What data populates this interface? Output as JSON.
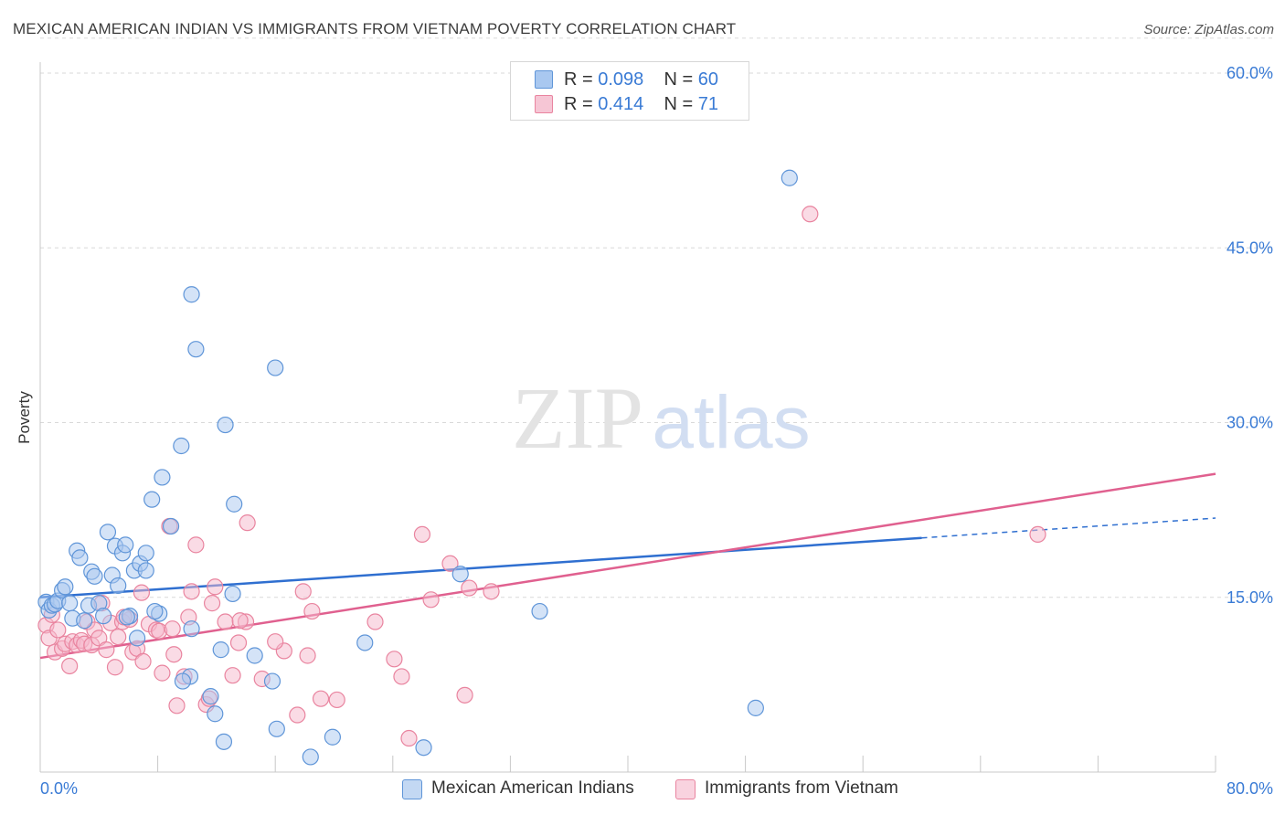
{
  "header": {
    "title": "MEXICAN AMERICAN INDIAN VS IMMIGRANTS FROM VIETNAM POVERTY CORRELATION CHART",
    "source": "Source: ZipAtlas.com"
  },
  "legend": {
    "rows": [
      {
        "r_label": "R =",
        "r_value": "0.098",
        "n_label": "N =",
        "n_value": "60"
      },
      {
        "r_label": "R =",
        "r_value": "0.414",
        "n_label": "N =",
        "n_value": "71"
      }
    ]
  },
  "watermark": {
    "zip": "ZIP",
    "atlas": "atlas"
  },
  "colors": {
    "blue_fill": "#a9c8f0",
    "blue_stroke": "#5f95d8",
    "blue_line": "#2f6fd0",
    "pink_fill": "#f6b8cc",
    "pink_stroke": "#e9849f",
    "pink_line": "#e0608f",
    "axis_label": "#3a7bd5",
    "grid": "#d9d9d9"
  },
  "chart_data": {
    "type": "scatter",
    "title": "MEXICAN AMERICAN INDIAN VS IMMIGRANTS FROM VIETNAM POVERTY CORRELATION CHART",
    "xlabel": "",
    "ylabel": "Poverty",
    "xlim": [
      0,
      80
    ],
    "ylim": [
      0,
      63
    ],
    "x_tick_labels": [
      "0.0%",
      "80.0%"
    ],
    "y_ticks": [
      15,
      30,
      45,
      60
    ],
    "y_tick_labels": [
      "15.0%",
      "30.0%",
      "45.0%",
      "60.0%"
    ],
    "grid": true,
    "legend_position": "top-center",
    "series": [
      {
        "name": "Mexican American Indians",
        "color": "#5f95d8",
        "r": 0.098,
        "n": 60,
        "trend": {
          "x0": 0,
          "y0": 15.0,
          "x1": 60,
          "y1": 20.1,
          "dashed_to_x": 80,
          "dashed_to_y": 21.8
        },
        "points": [
          [
            0.4,
            14.6
          ],
          [
            0.6,
            13.9
          ],
          [
            0.8,
            14.3
          ],
          [
            1.0,
            14.4
          ],
          [
            1.2,
            14.7
          ],
          [
            1.5,
            15.6
          ],
          [
            1.7,
            15.9
          ],
          [
            2.0,
            14.5
          ],
          [
            2.2,
            13.2
          ],
          [
            2.5,
            19.0
          ],
          [
            2.7,
            18.4
          ],
          [
            3.0,
            13.0
          ],
          [
            3.3,
            14.3
          ],
          [
            3.5,
            17.2
          ],
          [
            3.7,
            16.8
          ],
          [
            4.0,
            14.5
          ],
          [
            4.3,
            13.4
          ],
          [
            4.6,
            20.6
          ],
          [
            4.9,
            16.9
          ],
          [
            5.1,
            19.4
          ],
          [
            5.3,
            16.0
          ],
          [
            5.6,
            18.8
          ],
          [
            5.8,
            19.5
          ],
          [
            6.1,
            13.4
          ],
          [
            6.4,
            17.3
          ],
          [
            6.6,
            11.5
          ],
          [
            6.8,
            17.9
          ],
          [
            7.2,
            17.3
          ],
          [
            7.2,
            18.8
          ],
          [
            7.6,
            23.4
          ],
          [
            8.1,
            13.6
          ],
          [
            8.3,
            25.3
          ],
          [
            8.9,
            21.1
          ],
          [
            9.6,
            28.0
          ],
          [
            10.3,
            12.3
          ],
          [
            10.3,
            41.0
          ],
          [
            10.6,
            36.3
          ],
          [
            11.6,
            6.5
          ],
          [
            11.9,
            5.0
          ],
          [
            12.3,
            10.5
          ],
          [
            12.5,
            2.6
          ],
          [
            13.1,
            15.3
          ],
          [
            13.2,
            23.0
          ],
          [
            14.6,
            10.0
          ],
          [
            15.8,
            7.8
          ],
          [
            16.1,
            3.7
          ],
          [
            18.4,
            1.3
          ],
          [
            19.9,
            3.0
          ],
          [
            22.1,
            11.1
          ],
          [
            26.1,
            2.1
          ],
          [
            28.6,
            17.0
          ],
          [
            34.0,
            13.8
          ],
          [
            48.7,
            5.5
          ],
          [
            51.0,
            51.0
          ],
          [
            12.6,
            29.8
          ],
          [
            16.0,
            34.7
          ],
          [
            5.9,
            13.3
          ],
          [
            7.8,
            13.8
          ],
          [
            10.2,
            8.2
          ],
          [
            9.7,
            7.8
          ]
        ]
      },
      {
        "name": "Immigrants from Vietnam",
        "color": "#e9849f",
        "r": 0.414,
        "n": 71,
        "trend": {
          "x0": 0,
          "y0": 9.8,
          "x1": 80,
          "y1": 25.6
        },
        "points": [
          [
            0.4,
            12.6
          ],
          [
            0.6,
            11.5
          ],
          [
            0.8,
            13.5
          ],
          [
            1.0,
            10.3
          ],
          [
            1.2,
            12.2
          ],
          [
            1.5,
            10.6
          ],
          [
            1.7,
            11.0
          ],
          [
            2.0,
            9.1
          ],
          [
            2.2,
            11.2
          ],
          [
            2.5,
            10.9
          ],
          [
            2.8,
            11.3
          ],
          [
            3.0,
            11.0
          ],
          [
            3.2,
            12.9
          ],
          [
            3.5,
            10.9
          ],
          [
            3.7,
            12.2
          ],
          [
            4.0,
            11.5
          ],
          [
            4.2,
            14.5
          ],
          [
            4.5,
            10.5
          ],
          [
            4.8,
            12.8
          ],
          [
            5.1,
            9.0
          ],
          [
            5.3,
            11.6
          ],
          [
            5.6,
            12.9
          ],
          [
            6.1,
            13.1
          ],
          [
            6.3,
            10.3
          ],
          [
            6.6,
            10.6
          ],
          [
            6.9,
            15.4
          ],
          [
            7.0,
            9.5
          ],
          [
            7.4,
            12.7
          ],
          [
            7.9,
            12.2
          ],
          [
            8.1,
            12.1
          ],
          [
            8.3,
            8.5
          ],
          [
            8.8,
            21.1
          ],
          [
            9.0,
            12.3
          ],
          [
            9.1,
            10.1
          ],
          [
            9.3,
            5.7
          ],
          [
            9.8,
            8.2
          ],
          [
            10.1,
            13.3
          ],
          [
            10.3,
            15.5
          ],
          [
            10.6,
            19.5
          ],
          [
            11.3,
            5.8
          ],
          [
            11.5,
            6.3
          ],
          [
            11.7,
            14.5
          ],
          [
            11.9,
            15.9
          ],
          [
            12.6,
            12.9
          ],
          [
            13.1,
            8.3
          ],
          [
            13.5,
            11.1
          ],
          [
            14.1,
            21.4
          ],
          [
            14.0,
            12.9
          ],
          [
            15.1,
            8.0
          ],
          [
            16.6,
            10.4
          ],
          [
            17.5,
            4.9
          ],
          [
            18.2,
            10.0
          ],
          [
            18.5,
            13.8
          ],
          [
            19.1,
            6.3
          ],
          [
            20.2,
            6.2
          ],
          [
            22.8,
            12.9
          ],
          [
            24.1,
            9.7
          ],
          [
            24.6,
            8.2
          ],
          [
            25.1,
            2.9
          ],
          [
            26.0,
            20.4
          ],
          [
            26.6,
            14.8
          ],
          [
            27.9,
            17.9
          ],
          [
            28.9,
            6.6
          ],
          [
            29.2,
            15.8
          ],
          [
            30.7,
            15.5
          ],
          [
            52.4,
            47.9
          ],
          [
            67.9,
            20.4
          ],
          [
            17.9,
            15.5
          ],
          [
            13.6,
            13.0
          ],
          [
            16.0,
            11.2
          ],
          [
            5.7,
            13.3
          ]
        ]
      }
    ]
  }
}
